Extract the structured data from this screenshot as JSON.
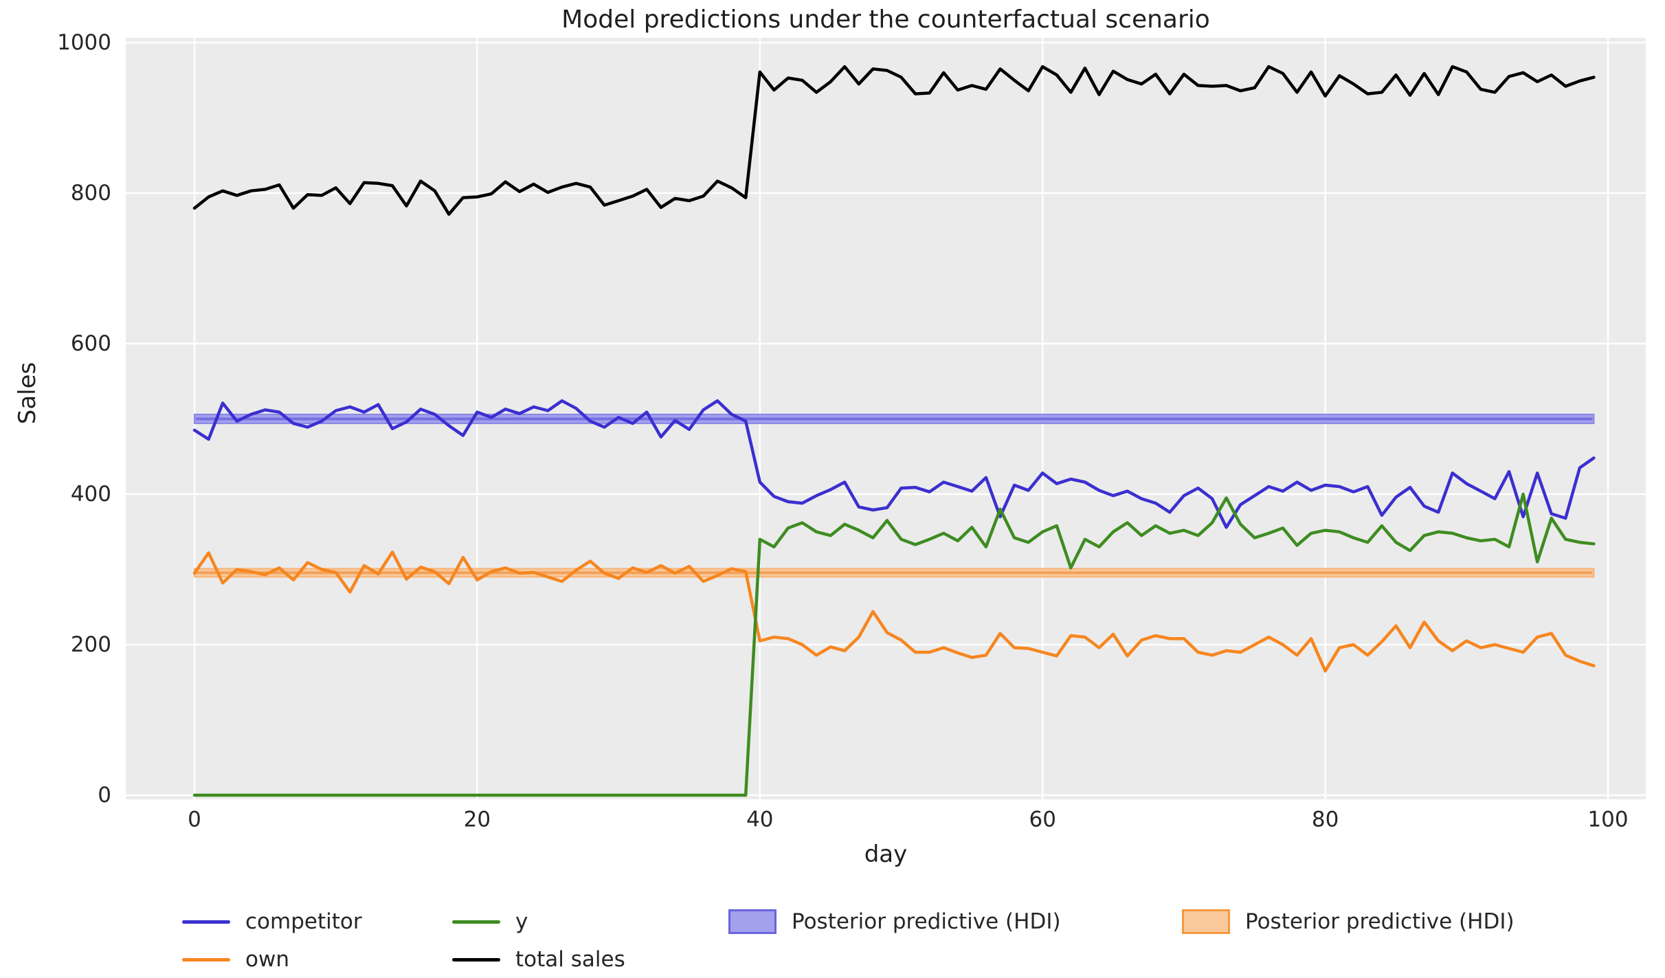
{
  "title": "Model predictions under the counterfactual scenario",
  "axes": {
    "x_label": "day",
    "y_label": "Sales",
    "x_ticks": [
      0,
      20,
      40,
      60,
      80,
      100
    ],
    "y_ticks": [
      0,
      200,
      400,
      600,
      800,
      1000
    ]
  },
  "colors": {
    "plot_background": "#ebebeb",
    "gridline": "#ffffff",
    "text": "#262626",
    "competitor": "#3b2fd0",
    "own": "#f6861f",
    "y": "#3e8c21",
    "total_sales": "#000000",
    "hdi_blue_fill": "#a3a0ec",
    "hdi_blue_edge": "#8b87e6",
    "hdi_blue_center": "#7570e2",
    "hdi_orange_fill": "#f9c99c",
    "hdi_orange_edge": "#f7b376",
    "hdi_orange_center": "#f2a159"
  },
  "legend": {
    "items": [
      {
        "label": "competitor",
        "type": "line",
        "color": "#3b2fd0"
      },
      {
        "label": "own",
        "type": "line",
        "color": "#f6861f"
      },
      {
        "label": "y",
        "type": "line",
        "color": "#3e8c21"
      },
      {
        "label": "total sales",
        "type": "line",
        "color": "#000000"
      },
      {
        "label": "Posterior predictive (HDI)",
        "type": "patch",
        "color": "#a3a0ec",
        "border": "#6a64dd"
      },
      {
        "label": "Posterior predictive (HDI)",
        "type": "patch",
        "color": "#f9c99c",
        "border": "#f5983f"
      }
    ]
  },
  "chart_data": {
    "type": "line",
    "title": "Model predictions under the counterfactual scenario",
    "xlabel": "day",
    "ylabel": "Sales",
    "xlim": [
      -4.9,
      102.8
    ],
    "ylim": [
      -5,
      1005
    ],
    "x_ticks": [
      0,
      20,
      40,
      60,
      80,
      100
    ],
    "y_ticks": [
      0,
      200,
      400,
      600,
      800,
      1000
    ],
    "grid": true,
    "legend_position": "bottom",
    "intervention_day": 40,
    "x": [
      0,
      1,
      2,
      3,
      4,
      5,
      6,
      7,
      8,
      9,
      10,
      11,
      12,
      13,
      14,
      15,
      16,
      17,
      18,
      19,
      20,
      21,
      22,
      23,
      24,
      25,
      26,
      27,
      28,
      29,
      30,
      31,
      32,
      33,
      34,
      35,
      36,
      37,
      38,
      39,
      40,
      41,
      42,
      43,
      44,
      45,
      46,
      47,
      48,
      49,
      50,
      51,
      52,
      53,
      54,
      55,
      56,
      57,
      58,
      59,
      60,
      61,
      62,
      63,
      64,
      65,
      66,
      67,
      68,
      69,
      70,
      71,
      72,
      73,
      74,
      75,
      76,
      77,
      78,
      79,
      80,
      81,
      82,
      83,
      84,
      85,
      86,
      87,
      88,
      89,
      90,
      91,
      92,
      93,
      94,
      95,
      96,
      97,
      98,
      99
    ],
    "series": [
      {
        "name": "competitor",
        "color": "#3b2fd0",
        "values": [
          485,
          473,
          521,
          497,
          506,
          512,
          509,
          494,
          489,
          497,
          511,
          516,
          509,
          519,
          487,
          496,
          513,
          506,
          491,
          478,
          509,
          502,
          513,
          507,
          516,
          511,
          524,
          514,
          497,
          489,
          502,
          494,
          509,
          476,
          498,
          486,
          512,
          524,
          506,
          497,
          416,
          397,
          390,
          388,
          398,
          406,
          416,
          383,
          379,
          382,
          408,
          409,
          403,
          416,
          410,
          404,
          422,
          370,
          412,
          405,
          428,
          414,
          420,
          416,
          405,
          398,
          404,
          394,
          388,
          376,
          398,
          408,
          394,
          356,
          386,
          398,
          410,
          404,
          416,
          405,
          412,
          410,
          403,
          410,
          372,
          396,
          409,
          384,
          376,
          428,
          414,
          404,
          394,
          430,
          370,
          428,
          374,
          368,
          435,
          448
        ]
      },
      {
        "name": "own",
        "color": "#f6861f",
        "values": [
          295,
          322,
          282,
          300,
          297,
          293,
          302,
          286,
          309,
          300,
          296,
          270,
          305,
          294,
          323,
          287,
          303,
          297,
          281,
          316,
          286,
          297,
          302,
          295,
          296,
          290,
          284,
          299,
          311,
          295,
          288,
          302,
          296,
          305,
          295,
          304,
          284,
          292,
          301,
          297,
          205,
          210,
          208,
          200,
          186,
          197,
          192,
          210,
          244,
          216,
          206,
          190,
          190,
          196,
          189,
          183,
          186,
          215,
          196,
          195,
          190,
          185,
          212,
          210,
          196,
          214,
          185,
          206,
          212,
          208,
          208,
          190,
          186,
          192,
          190,
          200,
          210,
          200,
          186,
          208,
          165,
          196,
          200,
          186,
          204,
          225,
          196,
          230,
          205,
          192,
          205,
          196,
          200,
          195,
          190,
          210,
          215,
          186,
          178,
          172
        ]
      },
      {
        "name": "y",
        "color": "#3e8c21",
        "values": [
          0,
          0,
          0,
          0,
          0,
          0,
          0,
          0,
          0,
          0,
          0,
          0,
          0,
          0,
          0,
          0,
          0,
          0,
          0,
          0,
          0,
          0,
          0,
          0,
          0,
          0,
          0,
          0,
          0,
          0,
          0,
          0,
          0,
          0,
          0,
          0,
          0,
          0,
          0,
          0,
          340,
          330,
          355,
          362,
          350,
          345,
          360,
          352,
          342,
          365,
          340,
          333,
          340,
          348,
          338,
          356,
          330,
          380,
          342,
          336,
          350,
          358,
          302,
          340,
          330,
          350,
          362,
          345,
          358,
          348,
          352,
          345,
          362,
          395,
          360,
          342,
          348,
          355,
          332,
          348,
          352,
          350,
          342,
          336,
          358,
          336,
          325,
          345,
          350,
          348,
          342,
          338,
          340,
          330,
          400,
          310,
          368,
          340,
          336,
          334
        ]
      },
      {
        "name": "total sales",
        "color": "#000000",
        "values": [
          780,
          795,
          803,
          797,
          803,
          805,
          811,
          780,
          798,
          797,
          807,
          786,
          814,
          813,
          810,
          783,
          816,
          803,
          772,
          794,
          795,
          799,
          815,
          802,
          812,
          801,
          808,
          813,
          808,
          784,
          790,
          796,
          805,
          781,
          793,
          790,
          796,
          816,
          807,
          794,
          961,
          937,
          953,
          950,
          934,
          948,
          968,
          945,
          965,
          963,
          954,
          932,
          933,
          960,
          937,
          943,
          938,
          965,
          950,
          936,
          968,
          957,
          934,
          966,
          931,
          962,
          951,
          945,
          958,
          932,
          958,
          943,
          942,
          943,
          936,
          940,
          968,
          959,
          934,
          961,
          929,
          956,
          945,
          932,
          934,
          957,
          930,
          959,
          931,
          968,
          961,
          938,
          934,
          955,
          960,
          948,
          957,
          942,
          949,
          954
        ]
      }
    ],
    "hdi_bands": [
      {
        "name": "Posterior predictive (HDI)",
        "applies_to": "competitor",
        "lo": 494,
        "hi": 506,
        "fill": "#a3a0ec",
        "edge": "#8b87e6",
        "center": "#7570e2"
      },
      {
        "name": "Posterior predictive (HDI)",
        "applies_to": "own",
        "lo": 290,
        "hi": 301,
        "fill": "#f9c99c",
        "edge": "#f7b376",
        "center": "#f2a159"
      }
    ]
  }
}
